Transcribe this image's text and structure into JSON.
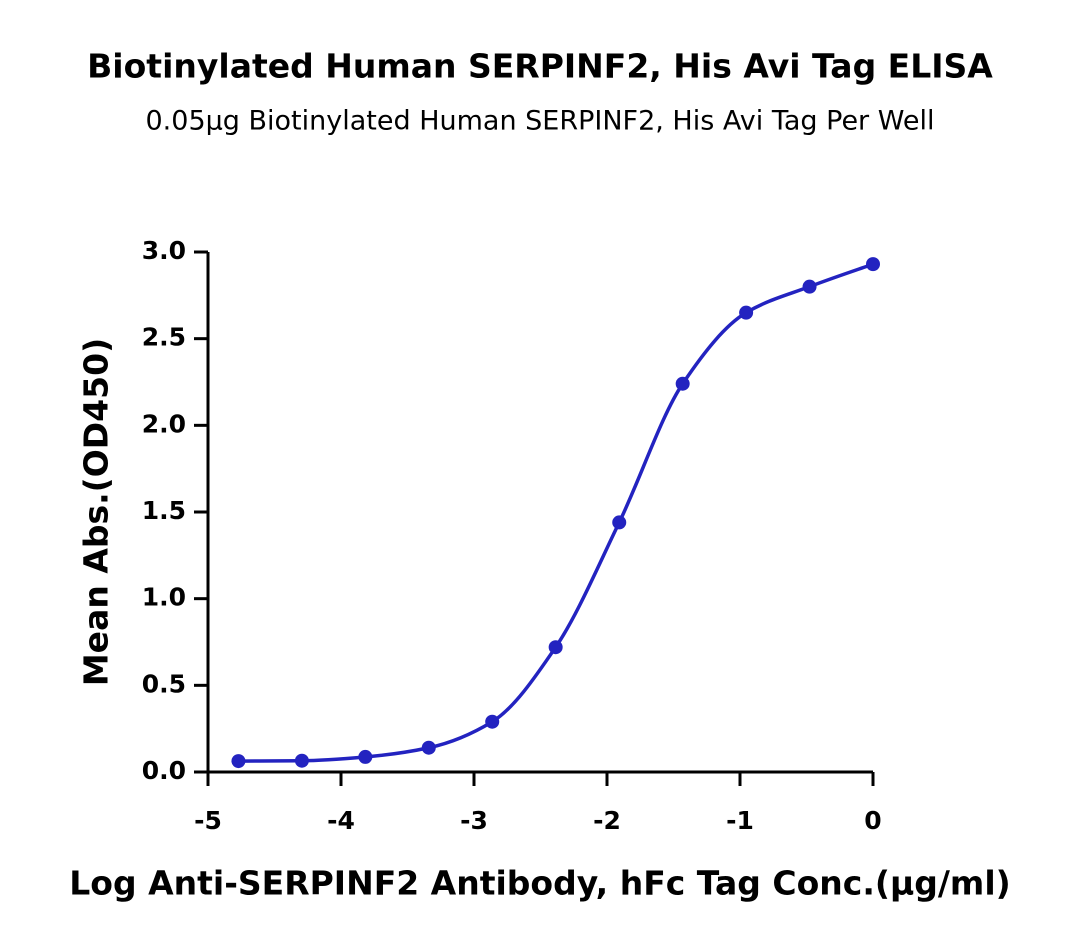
{
  "chart_data": {
    "type": "scatter",
    "title": "Biotinylated Human SERPINF2, His Avi Tag ELISA",
    "subtitle": "0.05μg Biotinylated Human SERPINF2, His Avi Tag Per Well",
    "x_label": "Log Anti-SERPINF2 Antibody, hFc Tag Conc.(μg/ml)",
    "y_label": "Mean Abs.(OD450)",
    "series": [
      {
        "color": "#2323c0",
        "x": [
          -4.771,
          -4.294,
          -3.817,
          -3.34,
          -2.863,
          -2.386,
          -1.908,
          -1.431,
          -0.954,
          -0.477,
          0
        ],
        "values": [
          0.063,
          0.065,
          0.087,
          0.14,
          0.29,
          0.72,
          1.44,
          2.24,
          2.65,
          2.8,
          2.93
        ]
      }
    ],
    "xlim": [
      -5,
      0
    ],
    "xticks": [
      -5,
      -4,
      -3,
      -2,
      -1,
      0
    ],
    "ylim": [
      0,
      3
    ],
    "yticks": [
      {
        "value": 0,
        "label": "0.0"
      },
      0.5,
      {
        "value": 1,
        "label": "1.0"
      },
      1.5,
      {
        "value": 2,
        "label": "2.0"
      },
      2.5,
      {
        "value": 3,
        "label": "3.0"
      }
    ],
    "fit_line": true
  }
}
